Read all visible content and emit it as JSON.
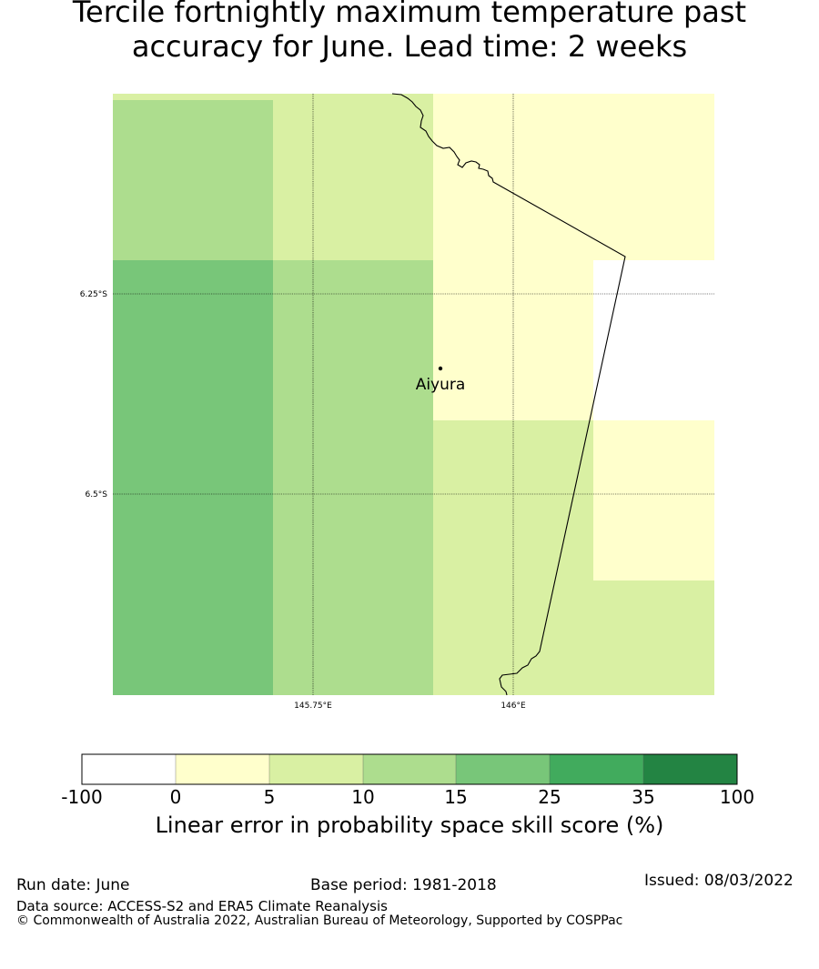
{
  "title": {
    "line1": "Tercile fortnightly maximum temperature past",
    "line2": "accuracy for June. Lead time: 2 weeks"
  },
  "map": {
    "place_label": "Aiyura",
    "lat_labels": [
      "6.25°S",
      "6.5°S"
    ],
    "lon_labels": [
      "145.75°E",
      "146°E"
    ],
    "grid": [
      [
        "10-15",
        "5-10",
        "0-5",
        "0-5"
      ],
      [
        "15-25",
        "10-15",
        "0-5",
        "-100-0"
      ],
      [
        "15-25",
        "10-15",
        "5-10",
        "0-5"
      ],
      [
        "15-25",
        "10-15",
        "5-10",
        "5-10"
      ]
    ]
  },
  "colorbar": {
    "ticks": [
      "-100",
      "0",
      "5",
      "10",
      "15",
      "25",
      "35",
      "100"
    ],
    "colors": [
      "#ffffff",
      "#ffffcc",
      "#d9f0a3",
      "#addd8e",
      "#78c679",
      "#41ab5d",
      "#238443"
    ],
    "label": "Linear error in probability space skill score (%)"
  },
  "footer": {
    "run_date": "Run date: June",
    "base_period": "Base period: 1981-2018",
    "issued": "Issued: 08/03/2022",
    "data_source": "Data source: ACCESS-S2 and ERA5 Climate Reanalysis",
    "copyright": "© Commonwealth of Australia 2022, Australian Bureau of Meteorology, Supported by COSPPac"
  }
}
